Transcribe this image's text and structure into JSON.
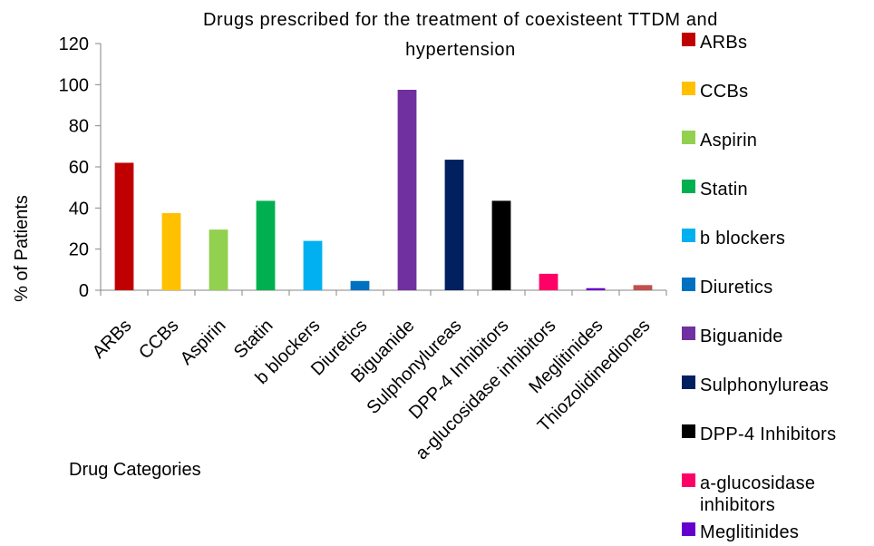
{
  "chart_data": {
    "type": "bar",
    "title_lines": [
      "Drugs prescribed for the treatment  of coexisteent TTDM and",
      "hypertension"
    ],
    "xlabel": "Drug Categories",
    "ylabel": "% of Patients",
    "ylim": [
      0,
      120
    ],
    "yticks": [
      "0",
      "20",
      "40",
      "60",
      "80",
      "100",
      "120"
    ],
    "grid": false,
    "legend_position": "right",
    "categories": [
      "ARBs",
      "CCBs",
      "Aspirin",
      "Statin",
      "b blockers",
      "Diuretics",
      "Biguanide",
      "Sulphonylureas",
      "DPP-4 Inhibitors",
      "a-glucosidase inhibitors",
      "Meglitinides",
      "Thiozolidinediones"
    ],
    "values": [
      62,
      37.5,
      29.5,
      43.5,
      24,
      4.5,
      97.5,
      63.5,
      43.5,
      8,
      1,
      2.5
    ],
    "colors": [
      "#c00000",
      "#ffc000",
      "#92d050",
      "#00b050",
      "#00b0f0",
      "#0070c0",
      "#7030a0",
      "#002060",
      "#000000",
      "#ff0066",
      "#6600cc",
      "#c0504d"
    ],
    "legend": [
      {
        "lines": [
          "ARBs"
        ],
        "color": "#c00000"
      },
      {
        "lines": [
          "CCBs"
        ],
        "color": "#ffc000"
      },
      {
        "lines": [
          "Aspirin"
        ],
        "color": "#92d050"
      },
      {
        "lines": [
          "Statin"
        ],
        "color": "#00b050"
      },
      {
        "lines": [
          "b blockers"
        ],
        "color": "#00b0f0"
      },
      {
        "lines": [
          "Diuretics"
        ],
        "color": "#0070c0"
      },
      {
        "lines": [
          "Biguanide"
        ],
        "color": "#7030a0"
      },
      {
        "lines": [
          "Sulphonylureas"
        ],
        "color": "#002060"
      },
      {
        "lines": [
          "DPP-4 Inhibitors"
        ],
        "color": "#000000"
      },
      {
        "lines": [
          "a-glucosidase",
          "inhibitors"
        ],
        "color": "#ff0066"
      },
      {
        "lines": [
          "Meglitinides"
        ],
        "color": "#6600cc"
      }
    ]
  }
}
